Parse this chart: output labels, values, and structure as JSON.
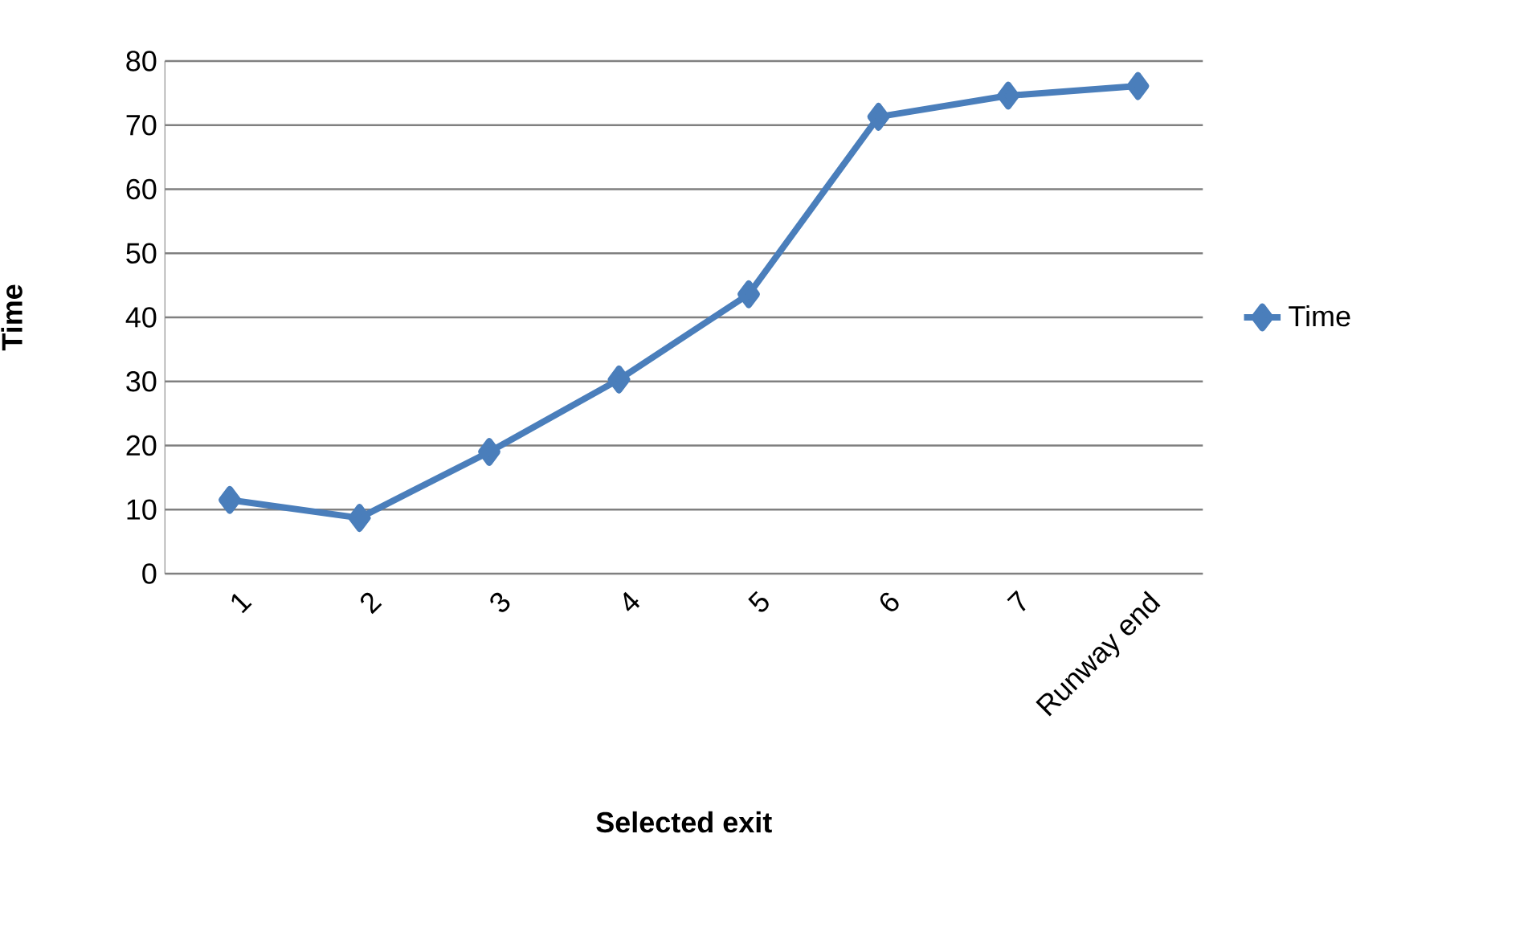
{
  "chart_data": {
    "type": "line",
    "xlabel": "Selected exit",
    "ylabel": "Time",
    "categories": [
      "1",
      "2",
      "3",
      "4",
      "5",
      "6",
      "7",
      "Runway end"
    ],
    "series": [
      {
        "name": "Time",
        "color": "#4a7ebb",
        "values": [
          11.5,
          8.7,
          19,
          30.3,
          43.6,
          71.3,
          74.6,
          76.1
        ]
      }
    ],
    "ylim": [
      0,
      80
    ],
    "yticks": [
      0,
      10,
      20,
      30,
      40,
      50,
      60,
      70,
      80
    ],
    "grid": "y",
    "legend": "right",
    "marker": "diamond",
    "line_style": "solid"
  }
}
